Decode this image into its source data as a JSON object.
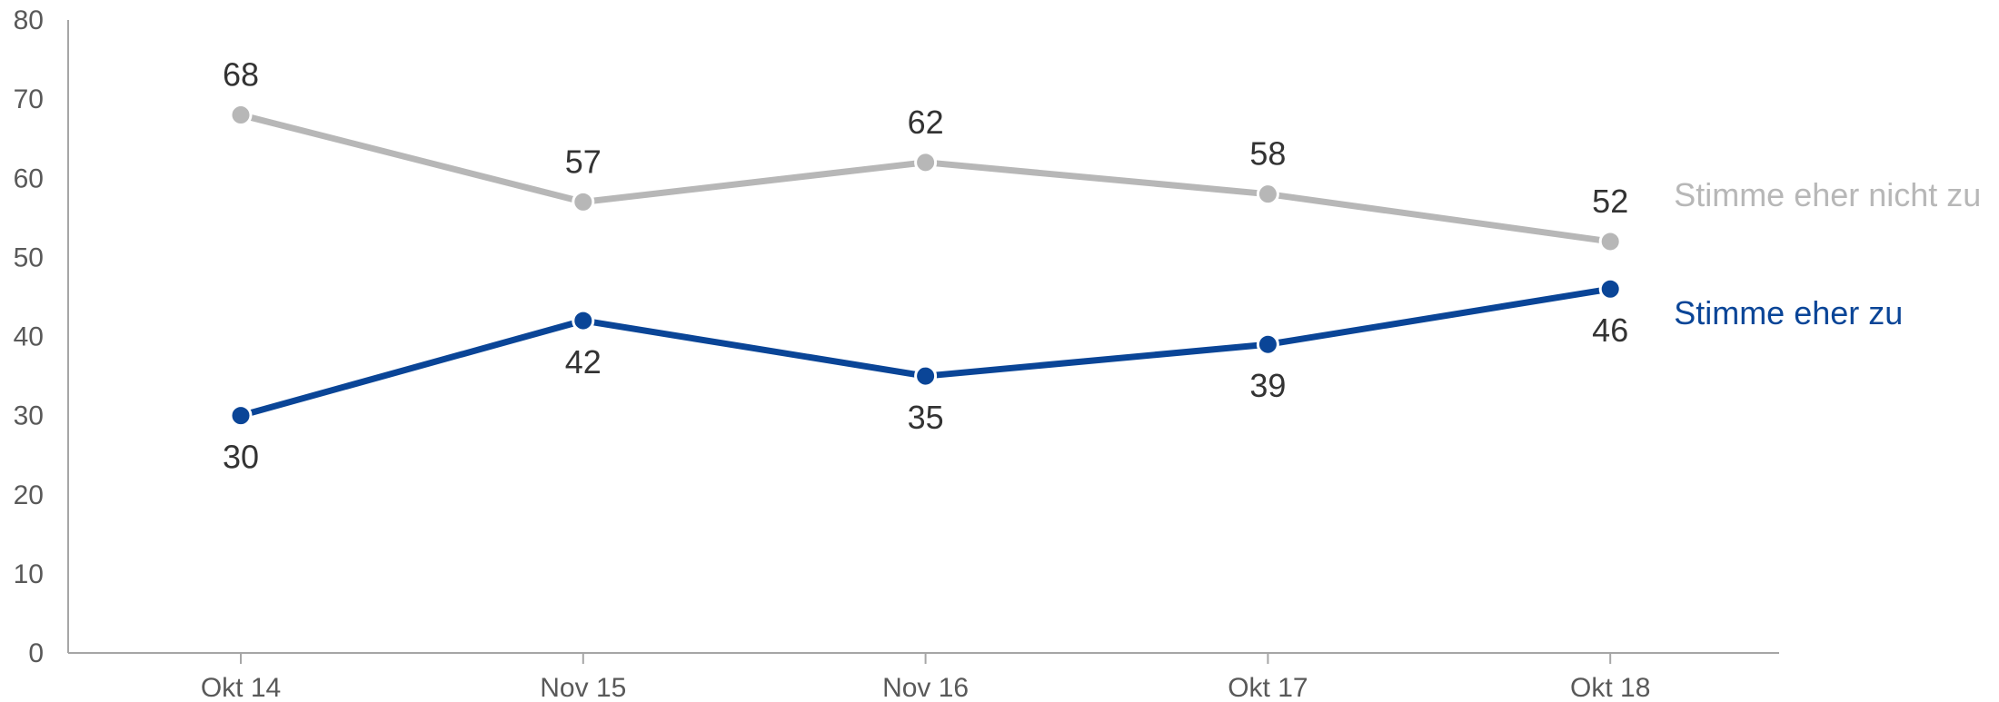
{
  "chart_data": {
    "type": "line",
    "categories": [
      "Okt 14",
      "Nov 15",
      "Nov 16",
      "Okt 17",
      "Okt 18"
    ],
    "yticks": [
      0,
      10,
      20,
      30,
      40,
      50,
      60,
      70,
      80
    ],
    "ylim": [
      0,
      80
    ],
    "grid": false,
    "legend": "direct labels right of last point",
    "series": [
      {
        "name": "Stimme eher nicht zu",
        "values": [
          68,
          57,
          62,
          58,
          52
        ],
        "color": "#b7b7b7",
        "label_position": "above"
      },
      {
        "name": "Stimme eher zu",
        "values": [
          30,
          42,
          35,
          39,
          46
        ],
        "color": "#0a4597",
        "label_position": "below"
      }
    ]
  }
}
